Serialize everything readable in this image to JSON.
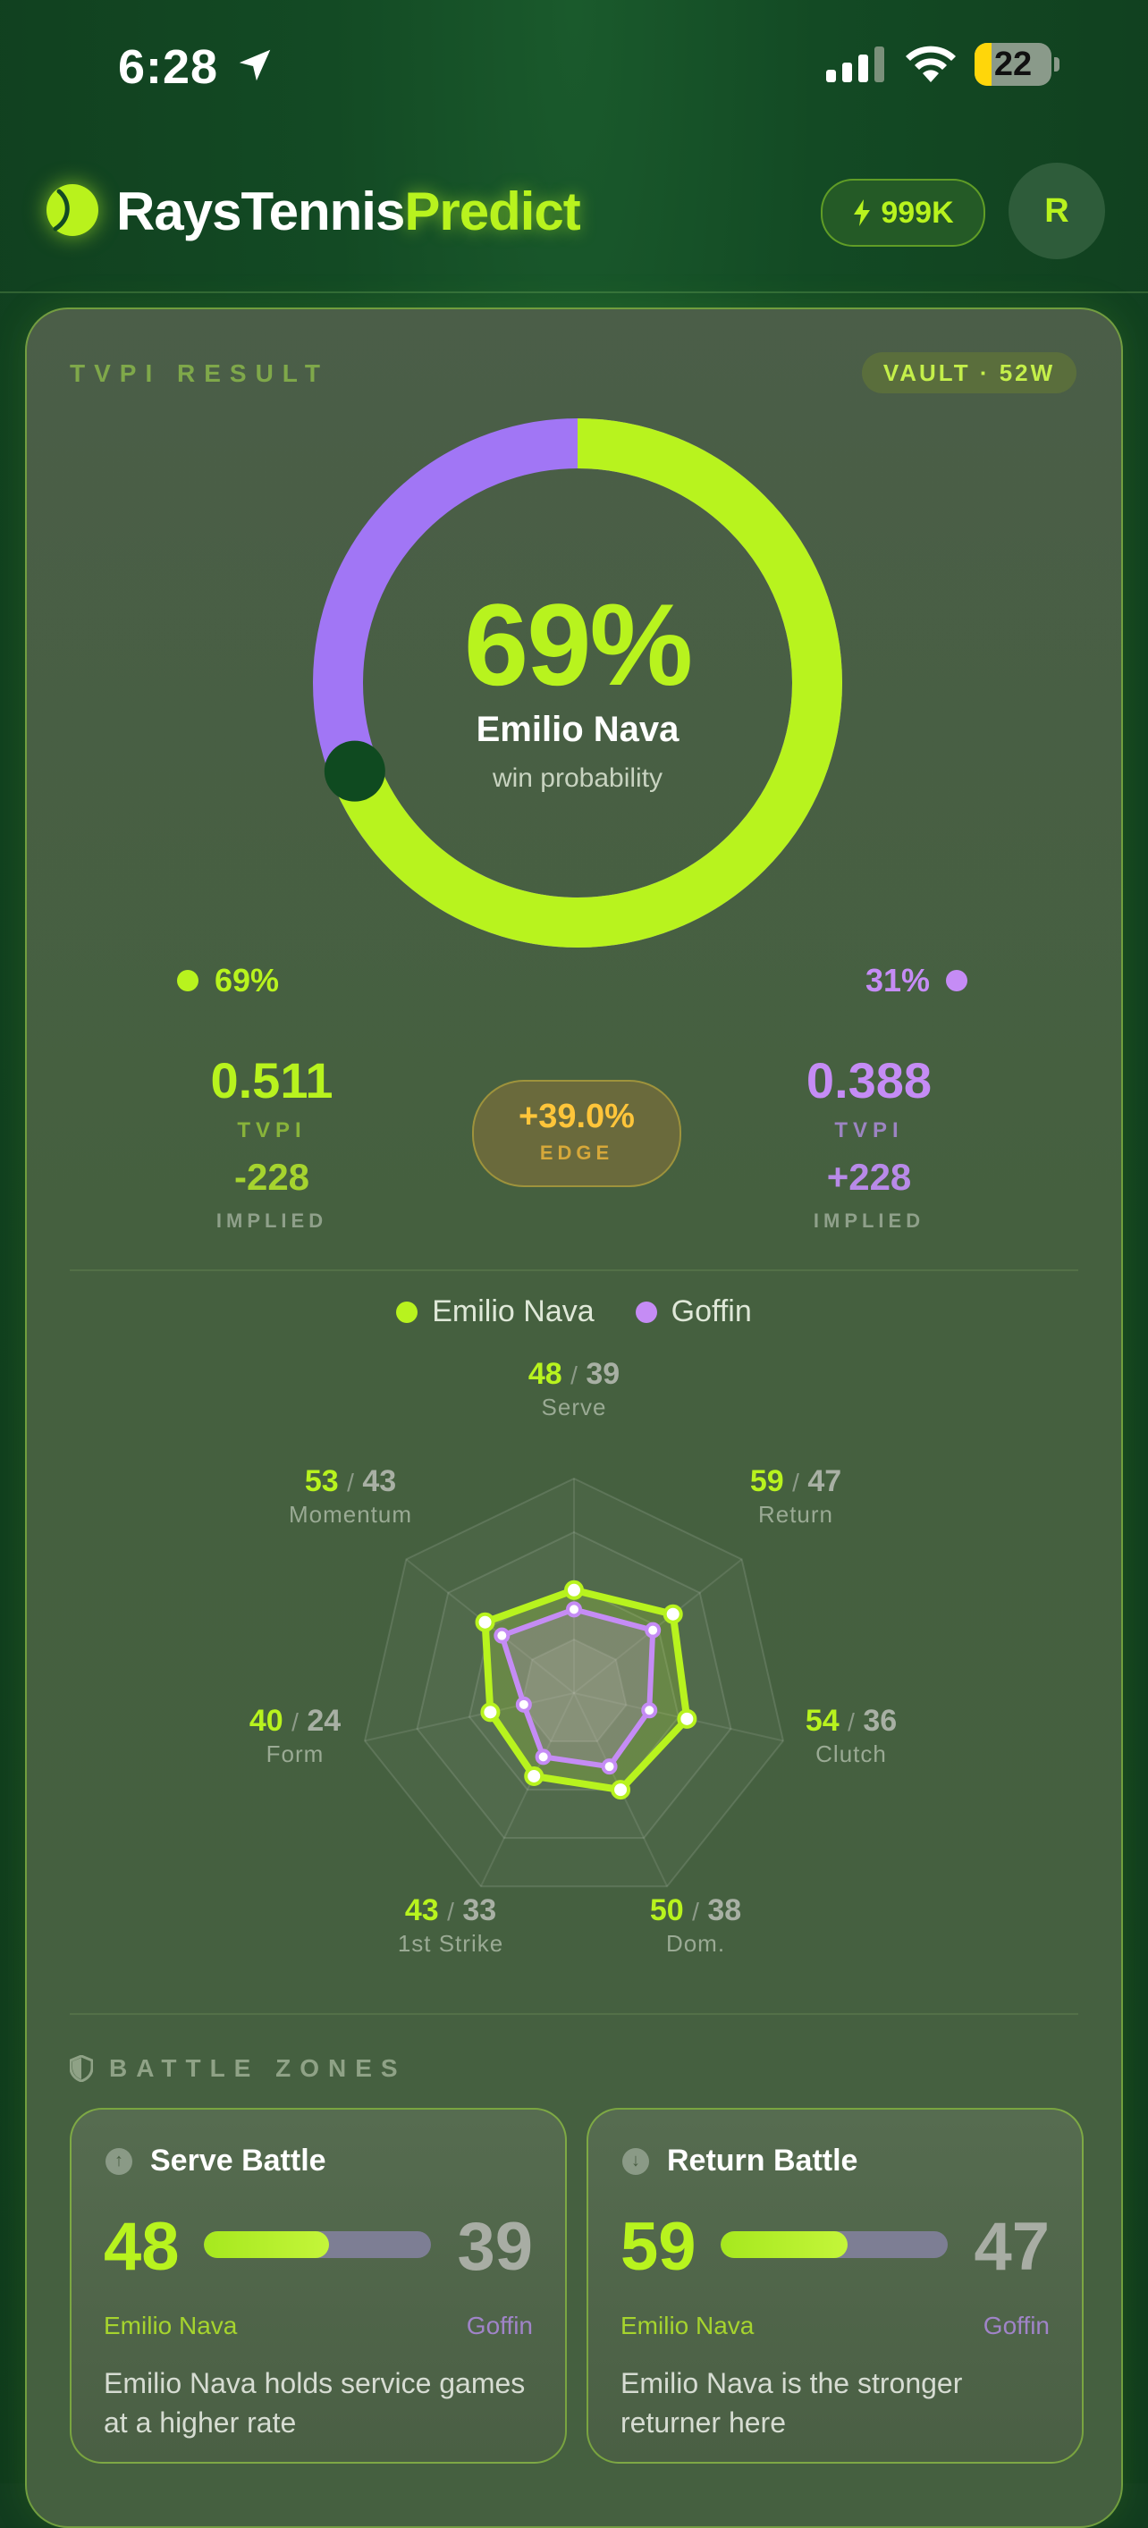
{
  "status_bar": {
    "time": "6:28",
    "battery": "22",
    "battery_level": 0.22
  },
  "header": {
    "brand_part1": "RaysTennis",
    "brand_part2": "Predict",
    "credits": "999K",
    "avatar_initial": "R"
  },
  "result": {
    "label": "TVPI RESULT",
    "vault_badge": "VAULT · 52W",
    "win_pct": "69%",
    "player_name": "Emilio Nava",
    "win_sub": "win probability",
    "win_fraction": 0.69,
    "left_pct": "69%",
    "right_pct": "31%"
  },
  "player_a": {
    "tvpi": "0.511",
    "tvpi_label": "TVPI",
    "odds": "-228",
    "implied_label": "IMPLIED"
  },
  "player_b": {
    "tvpi": "0.388",
    "tvpi_label": "TVPI",
    "odds": "+228",
    "implied_label": "IMPLIED"
  },
  "edge": {
    "value": "+39.0%",
    "label": "EDGE"
  },
  "radar": {
    "legend_a": "Emilio Nava",
    "legend_b": "Goffin",
    "axes": [
      {
        "name": "Serve",
        "a": "48",
        "b": "39"
      },
      {
        "name": "Return",
        "a": "59",
        "b": "47"
      },
      {
        "name": "Clutch",
        "a": "54",
        "b": "36"
      },
      {
        "name": "Dom.",
        "a": "50",
        "b": "38"
      },
      {
        "name": "1st Strike",
        "a": "43",
        "b": "33"
      },
      {
        "name": "Form",
        "a": "40",
        "b": "24"
      },
      {
        "name": "Momentum",
        "a": "53",
        "b": "43"
      }
    ],
    "separator": "/"
  },
  "battle_zones": {
    "title": "BATTLE ZONES",
    "cards": [
      {
        "title": "Serve Battle",
        "icon": "arrow-up-icon",
        "a": "48",
        "b": "39",
        "share_a": 0.55,
        "player_a": "Emilio Nava",
        "player_b": "Goffin",
        "desc": "Emilio Nava holds service games at a higher rate"
      },
      {
        "title": "Return Battle",
        "icon": "arrow-down-icon",
        "a": "59",
        "b": "47",
        "share_a": 0.56,
        "player_a": "Emilio Nava",
        "player_b": "Goffin",
        "desc": "Emilio Nava is the stronger returner here"
      }
    ]
  },
  "colors": {
    "accent": "#b8f31e",
    "opponent": "#c58cf5",
    "edge": "#ffc53a"
  }
}
